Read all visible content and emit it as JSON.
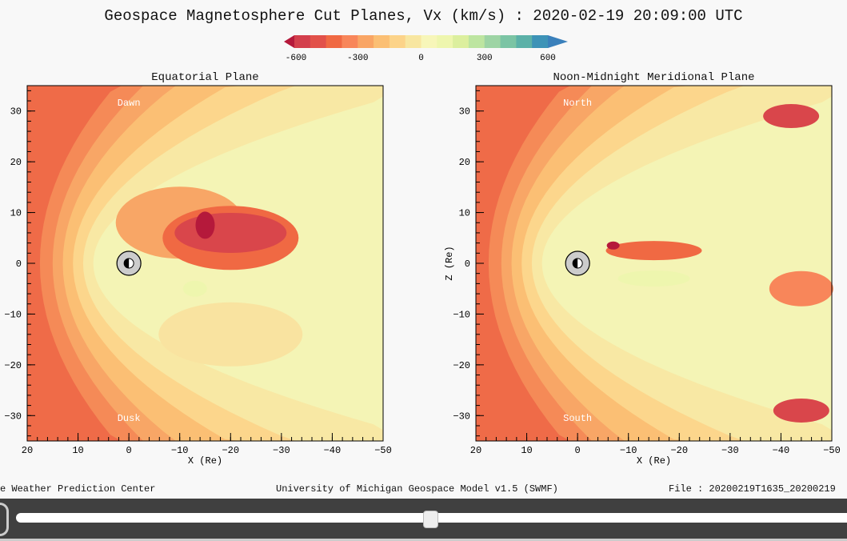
{
  "chart_data": {
    "type": "heatmap",
    "title": "Geospace Magnetosphere Cut Planes, Vx (km/s) : 2020-02-19 20:09:00 UTC",
    "colorbar": {
      "ticks": [
        "-600",
        "-300",
        "0",
        "300",
        "600"
      ],
      "range": [
        -600,
        600
      ],
      "colors": [
        "#b5193b",
        "#d33f4c",
        "#e2514a",
        "#f06943",
        "#f8865a",
        "#f9a565",
        "#fbbf74",
        "#fcd389",
        "#f8e6a0",
        "#f7f6b9",
        "#eef6ae",
        "#dcef9e",
        "#bde5a0",
        "#9dd4a4",
        "#7bc4a4",
        "#5cb1a8",
        "#3d93b7",
        "#3a80bb"
      ]
    },
    "panels": [
      {
        "title": "Equatorial Plane",
        "xlabel": "X (Re)",
        "ylabel": "",
        "xlim": [
          20,
          -50
        ],
        "ylim": [
          -35,
          35
        ],
        "xticks": [
          "20",
          "10",
          "0",
          "−10",
          "−20",
          "−30",
          "−40",
          "−50"
        ],
        "yticks": [
          "30",
          "20",
          "10",
          "0",
          "−10",
          "−20",
          "−30"
        ],
        "labels": {
          "top": "Dawn",
          "bottom": "Dusk"
        }
      },
      {
        "title": "Noon-Midnight Meridional Plane",
        "xlabel": "X (Re)",
        "ylabel": "Z (Re)",
        "xlim": [
          20,
          -50
        ],
        "ylim": [
          -35,
          35
        ],
        "xticks": [
          "20",
          "10",
          "0",
          "−10",
          "−20",
          "−30",
          "−40",
          "−50"
        ],
        "yticks": [
          "30",
          "20",
          "10",
          "0",
          "−10",
          "−20",
          "−30"
        ],
        "labels": {
          "top": "North",
          "bottom": "South"
        }
      }
    ]
  },
  "footer": {
    "left": "e Weather Prediction Center",
    "center": "University of Michigan Geospace Model v1.5 (SWMF)",
    "right": "File : 20200219T1635_20200219"
  },
  "player": {
    "position": 0.5
  }
}
